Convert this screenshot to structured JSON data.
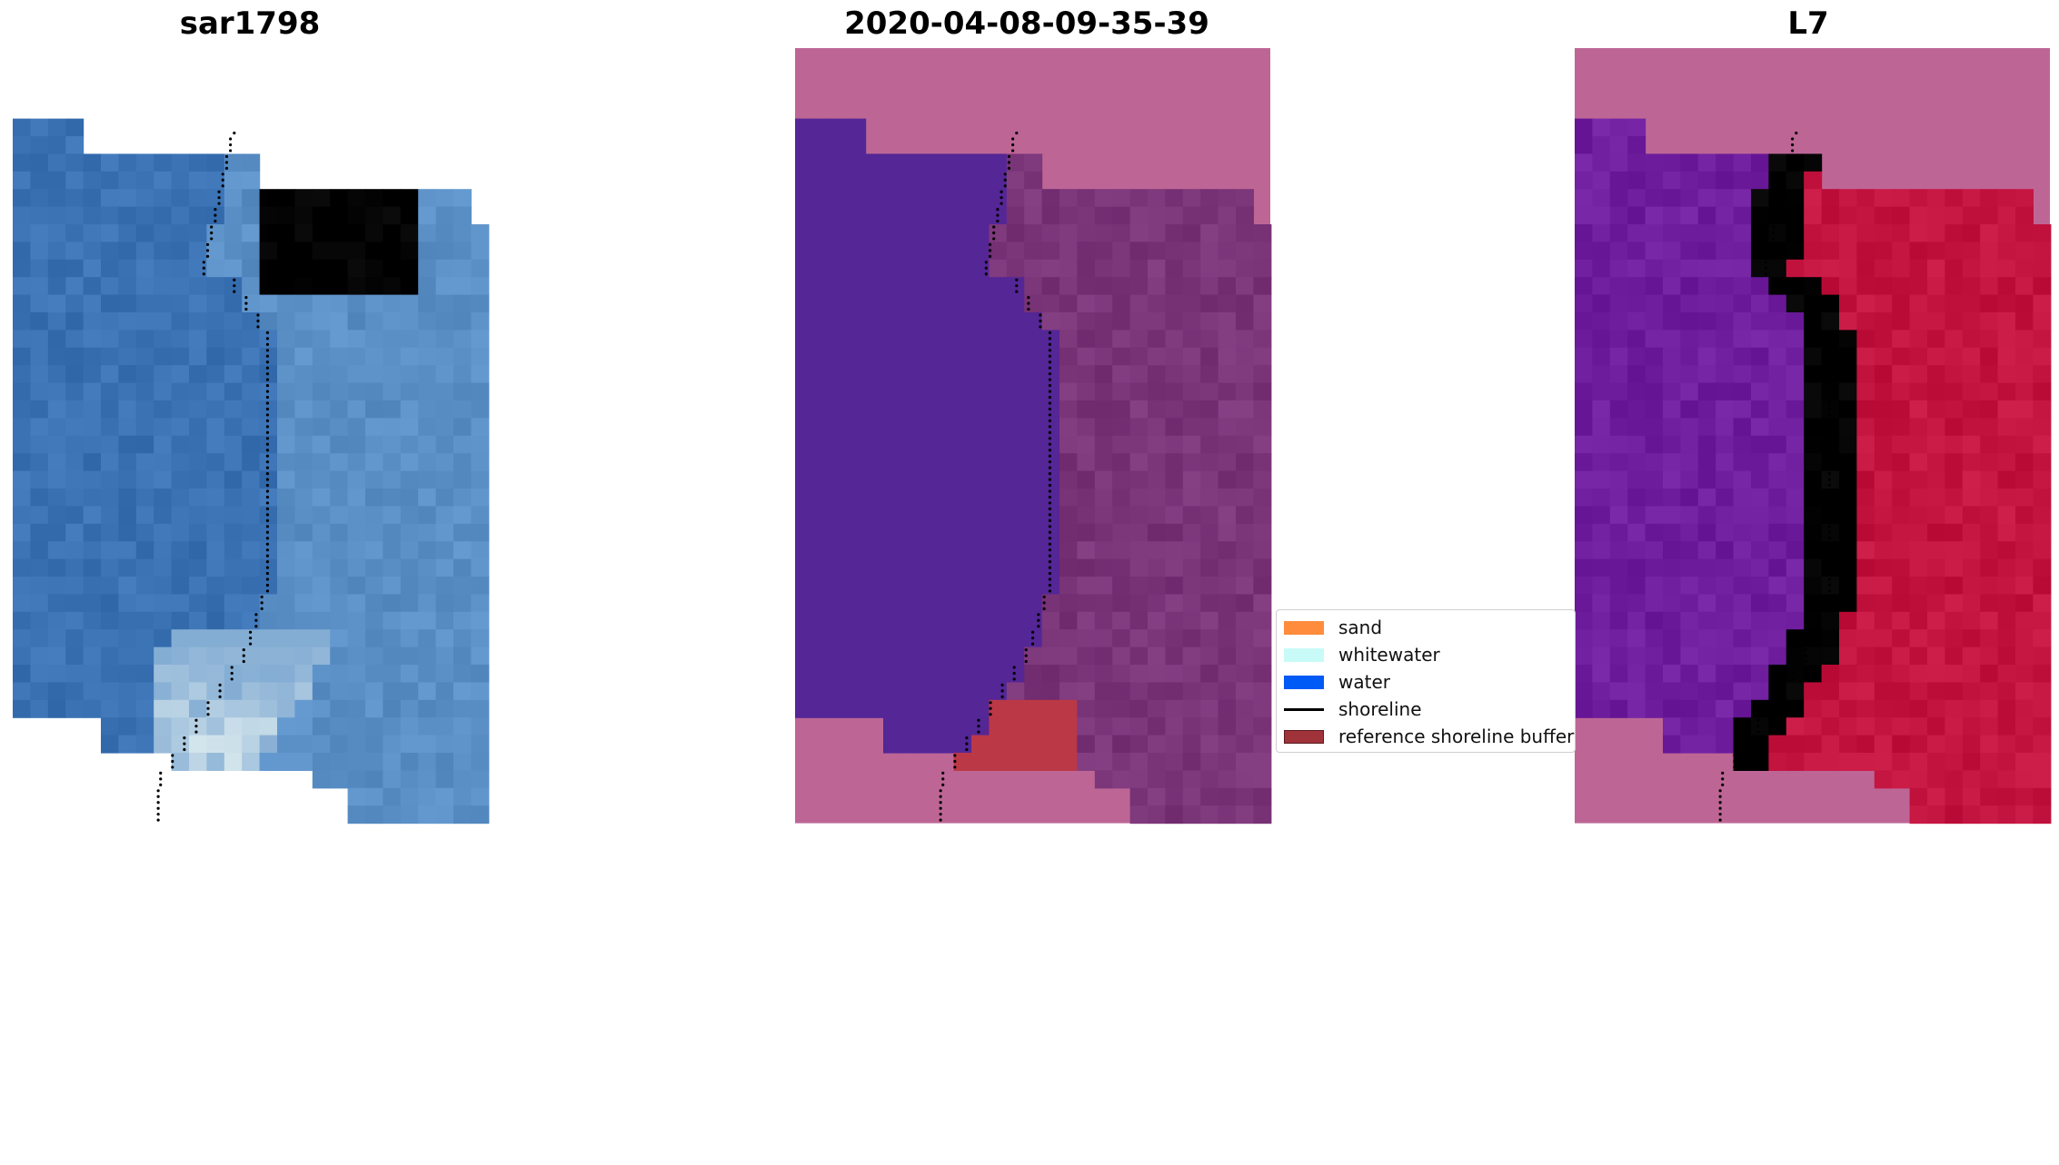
{
  "panels": [
    {
      "title": "sar1798"
    },
    {
      "title": "2020-04-08-09-35-39"
    },
    {
      "title": "L7"
    }
  ],
  "legend": {
    "items": [
      {
        "label": "sand",
        "color": "#ff8c3d",
        "kind": "patch"
      },
      {
        "label": "whitewater",
        "color": "#c8fbf7",
        "kind": "patch"
      },
      {
        "label": "water",
        "color": "#005af5",
        "kind": "patch"
      },
      {
        "label": "shoreline",
        "color": "#000000",
        "kind": "line"
      },
      {
        "label": "reference shoreline buffer",
        "color": "#a0323a",
        "kind": "patch"
      }
    ]
  },
  "colors": {
    "rgb_water": "#3a72b4",
    "rgb_land": "#5a8fc6",
    "rgb_surf": "#e6f2f2",
    "class_water": "#542696",
    "class_land": "#7a3478",
    "nodata": "#bd6696",
    "buffer": "#bb3847",
    "mndwi_water": "#6f1e9e",
    "mndwi_land": "#c3143f"
  }
}
